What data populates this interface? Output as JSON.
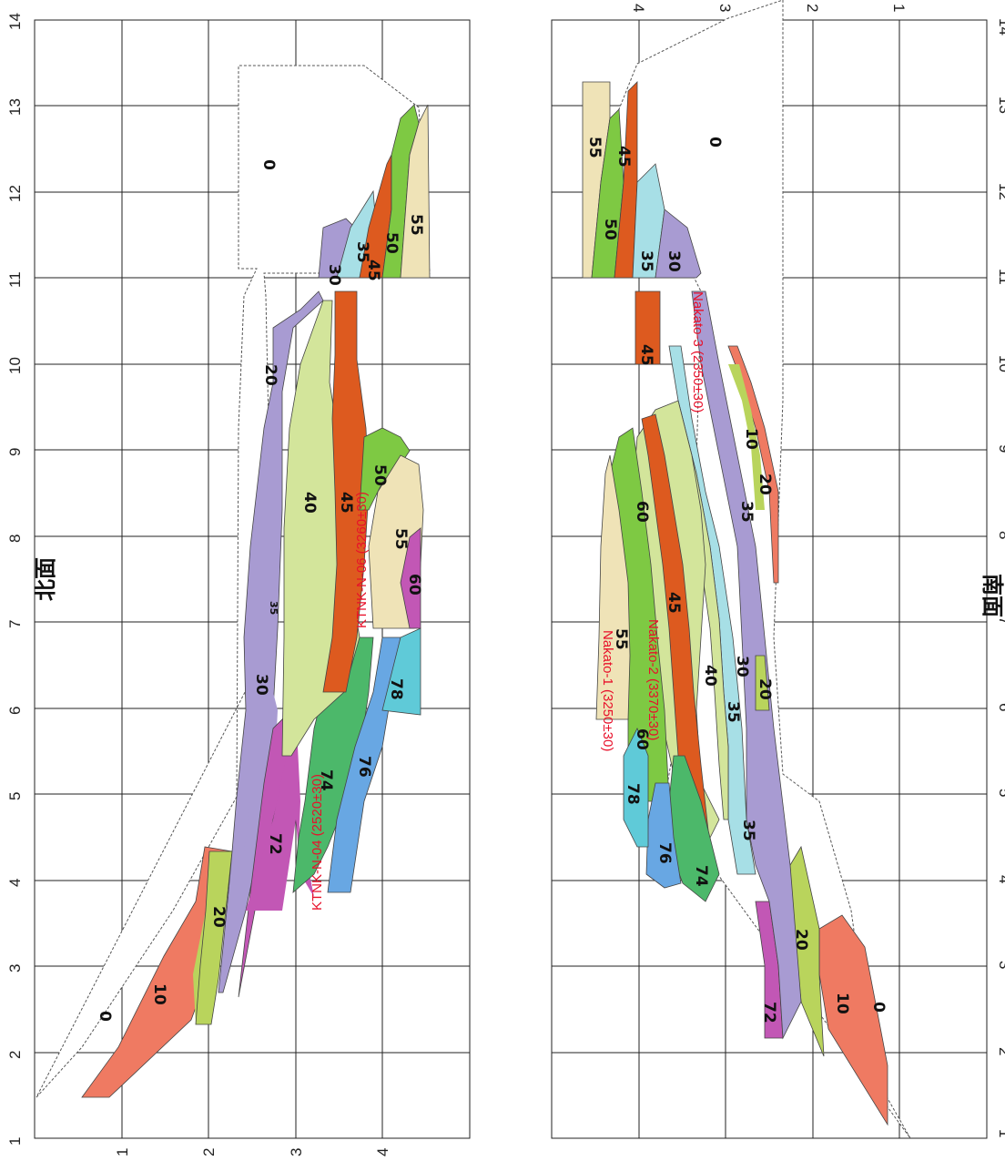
{
  "figure": {
    "north": {
      "title": "北面",
      "x_ticks": [
        "1",
        "2",
        "3",
        "4",
        "5",
        "6",
        "7",
        "8",
        "9",
        "10",
        "11",
        "12",
        "13",
        "14"
      ],
      "y_ticks": [
        "1",
        "2",
        "3",
        "4"
      ],
      "units": [
        {
          "label": "0",
          "color": "#ffffff"
        },
        {
          "label": "10",
          "color": "#ef7a62"
        },
        {
          "label": "20",
          "color": "#b9d45c"
        },
        {
          "label": "30",
          "color": "#a89bd2"
        },
        {
          "label": "35",
          "color": "#a7dfe6"
        },
        {
          "label": "40",
          "color": "#d3e59b"
        },
        {
          "label": "45",
          "color": "#dd5a1f"
        },
        {
          "label": "50",
          "color": "#7ec943"
        },
        {
          "label": "55",
          "color": "#efe3b7"
        },
        {
          "label": "60",
          "color": "#c257b5"
        },
        {
          "label": "72",
          "color": "#c257b5"
        },
        {
          "label": "74",
          "color": "#4cb86a"
        },
        {
          "label": "76",
          "color": "#68a7e3"
        },
        {
          "label": "78",
          "color": "#5fcad8"
        },
        {
          "label": "20",
          "color": "#b9d45c"
        },
        {
          "label": "30",
          "color": "#a89bd2"
        },
        {
          "label": "35",
          "color": "#a7dfe6"
        }
      ],
      "samples": [
        {
          "label": "KTNK-N-06 (3260±30)"
        },
        {
          "label": "KTNK-N-04 (2520±30)"
        }
      ]
    },
    "south": {
      "title": "南面",
      "x_ticks": [
        "1",
        "2",
        "3",
        "4",
        "5",
        "6",
        "7",
        "8",
        "9",
        "10",
        "11",
        "12",
        "13",
        "14"
      ],
      "y_ticks": [
        "1",
        "2",
        "3",
        "4"
      ],
      "units": [
        {
          "label": "0",
          "color": "#ffffff"
        },
        {
          "label": "10",
          "color": "#ef7a62"
        },
        {
          "label": "20",
          "color": "#b9d45c"
        },
        {
          "label": "30",
          "color": "#a89bd2"
        },
        {
          "label": "35",
          "color": "#a7dfe6"
        },
        {
          "label": "40",
          "color": "#d3e59b"
        },
        {
          "label": "45",
          "color": "#dd5a1f"
        },
        {
          "label": "50",
          "color": "#7ec943"
        },
        {
          "label": "55",
          "color": "#efe3b7"
        },
        {
          "label": "60",
          "color": "#7ec943"
        },
        {
          "label": "72",
          "color": "#c257b5"
        },
        {
          "label": "74",
          "color": "#4cb86a"
        },
        {
          "label": "76",
          "color": "#68a7e3"
        },
        {
          "label": "78",
          "color": "#5fcad8"
        }
      ],
      "samples": [
        {
          "label": "Nakato-3 (2350±30)"
        },
        {
          "label": "Nakato-2 (3370±30)"
        },
        {
          "label": "Nakato-1 (3250±30)"
        }
      ]
    }
  }
}
